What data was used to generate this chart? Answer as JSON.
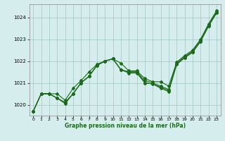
{
  "xlabel": "Graphe pression niveau de la mer (hPa)",
  "xlim": [
    -0.5,
    23.5
  ],
  "ylim": [
    1019.5,
    1024.6
  ],
  "yticks": [
    1020,
    1021,
    1022,
    1023,
    1024
  ],
  "xticks": [
    0,
    1,
    2,
    3,
    4,
    5,
    6,
    7,
    8,
    9,
    10,
    11,
    12,
    13,
    14,
    15,
    16,
    17,
    18,
    19,
    20,
    21,
    22,
    23
  ],
  "bg_color": "#d5eeed",
  "grid_color": "#a8cccc",
  "line_color": "#1a6b1a",
  "series": [
    [
      1019.7,
      1020.5,
      1020.5,
      1020.5,
      1020.2,
      1020.75,
      1021.1,
      1021.5,
      1021.85,
      1022.0,
      1022.1,
      1021.9,
      1021.55,
      1021.55,
      1021.2,
      1021.05,
      1021.05,
      1020.85,
      1021.95,
      1022.25,
      1022.5,
      1023.0,
      1023.7,
      1024.3
    ],
    [
      1019.7,
      1020.5,
      1020.5,
      1020.3,
      1020.1,
      1020.5,
      1021.0,
      1021.3,
      1021.8,
      1022.0,
      1022.1,
      1021.6,
      1021.5,
      1021.5,
      1021.1,
      1021.0,
      1020.85,
      1020.7,
      1021.9,
      1022.2,
      1022.45,
      1022.95,
      1023.65,
      1024.25
    ],
    [
      1019.7,
      1020.5,
      1020.5,
      1020.3,
      1020.1,
      1020.5,
      1021.0,
      1021.3,
      1021.8,
      1022.0,
      1022.1,
      1021.6,
      1021.5,
      1021.5,
      1021.0,
      1020.95,
      1020.8,
      1020.65,
      1021.85,
      1022.15,
      1022.4,
      1022.9,
      1023.6,
      1024.2
    ],
    [
      1019.7,
      1020.5,
      1020.5,
      1020.3,
      1020.05,
      1020.5,
      1021.0,
      1021.3,
      1021.8,
      1022.0,
      1022.1,
      1021.6,
      1021.45,
      1021.45,
      1021.0,
      1020.95,
      1020.75,
      1020.6,
      1021.85,
      1022.15,
      1022.4,
      1022.9,
      1023.6,
      1024.2
    ]
  ]
}
